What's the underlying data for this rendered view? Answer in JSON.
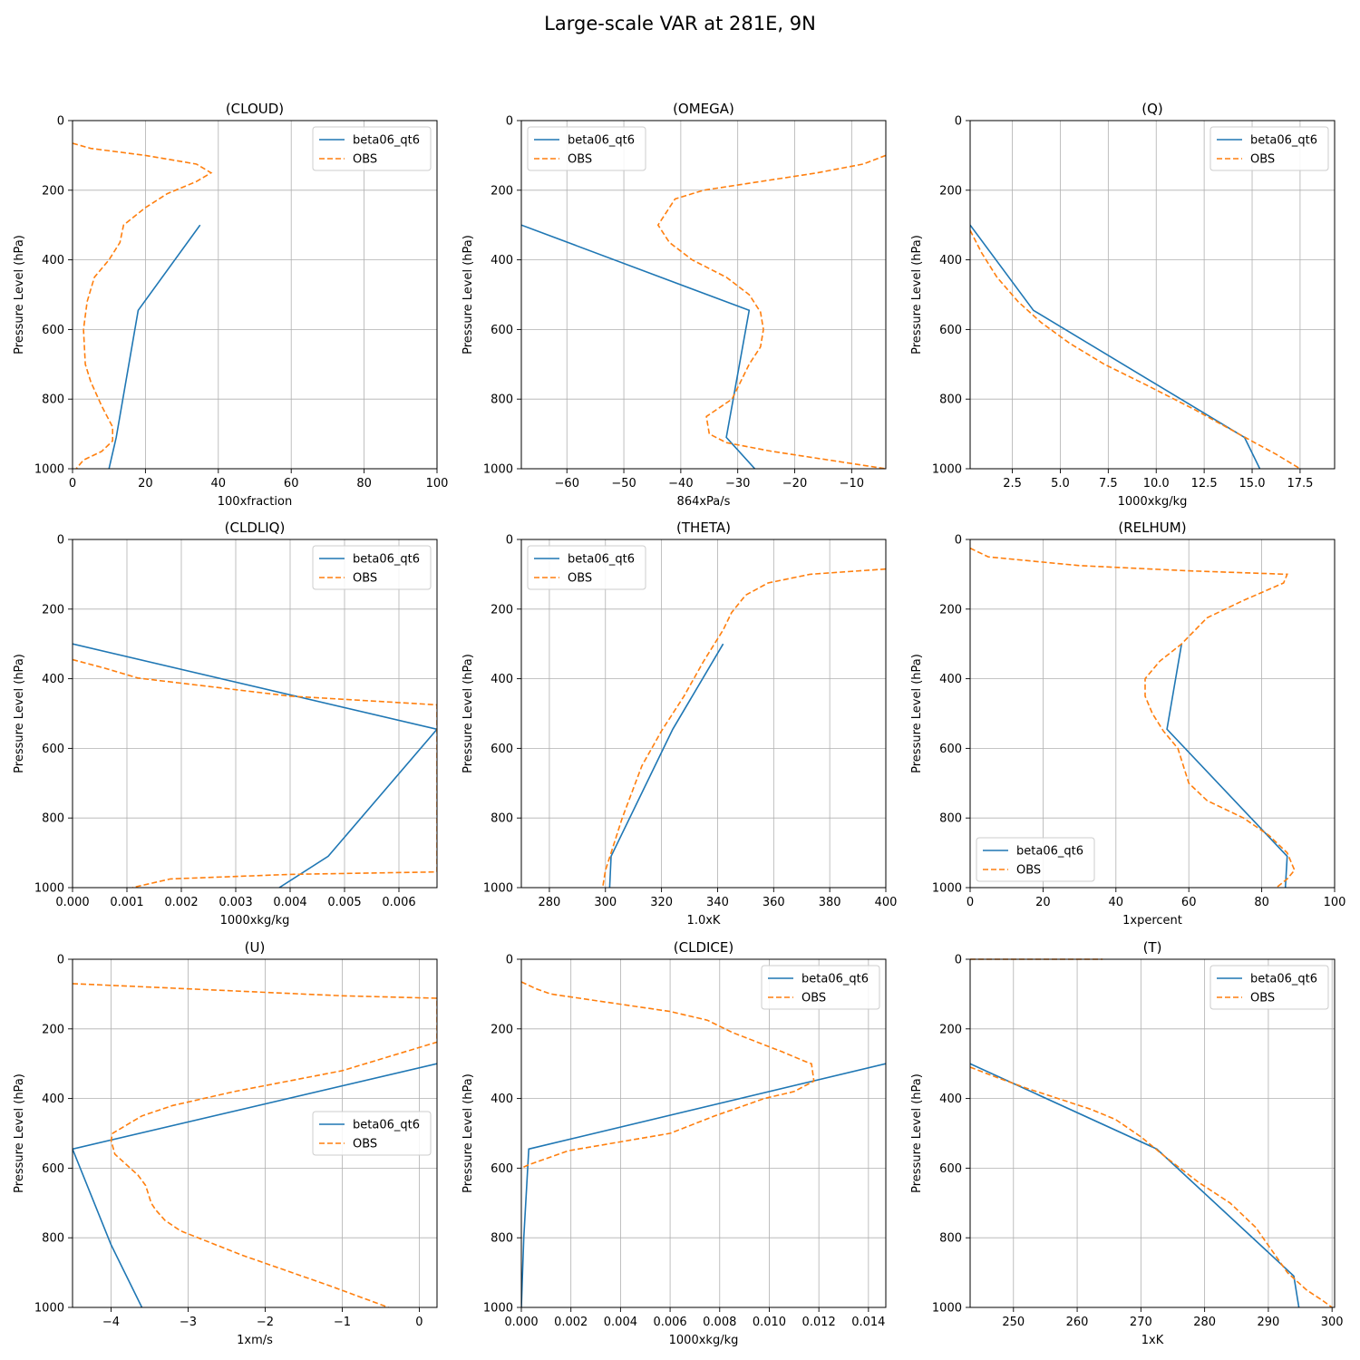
{
  "figure": {
    "title": "Large-scale VAR at 281E, 9N"
  },
  "colors": {
    "model": "#1f77b4",
    "obs": "#ff7f0e",
    "grid": "#b0b0b0"
  },
  "chart_data": [
    {
      "id": "cloud",
      "type": "line",
      "title": "(CLOUD)",
      "xlabel": "100xfraction",
      "ylabel": "Pressure Level (hPa)",
      "xlim": [
        0,
        100
      ],
      "ylim": [
        1000,
        0
      ],
      "xticks": [
        0,
        20,
        40,
        60,
        80,
        100
      ],
      "xtick_labels": [
        "0",
        "20",
        "40",
        "60",
        "80",
        "100"
      ],
      "yticks": [
        0,
        200,
        400,
        600,
        800,
        1000
      ],
      "ytick_labels": [
        "0",
        "200",
        "400",
        "600",
        "800",
        "1000"
      ],
      "legend": "upper right",
      "series": [
        {
          "name": "beta06_qt6",
          "style": "solid",
          "x": [
            35,
            18,
            12,
            10
          ],
          "y": [
            300,
            545,
            910,
            1000
          ]
        },
        {
          "name": "OBS",
          "style": "dashed",
          "x": [
            0,
            5,
            20,
            34,
            38,
            34,
            26,
            20,
            14,
            13,
            10,
            6,
            4,
            3,
            3.5,
            5,
            8,
            11,
            11,
            8,
            3,
            1
          ],
          "y": [
            65,
            80,
            100,
            125,
            150,
            175,
            210,
            250,
            300,
            350,
            400,
            450,
            520,
            600,
            700,
            750,
            820,
            880,
            920,
            950,
            975,
            1000
          ]
        }
      ]
    },
    {
      "id": "omega",
      "type": "line",
      "title": "(OMEGA)",
      "xlabel": "864xPa/s",
      "ylabel": "Pressure Level (hPa)",
      "xlim": [
        -68,
        -4
      ],
      "ylim": [
        1000,
        0
      ],
      "xticks": [
        -60,
        -50,
        -40,
        -30,
        -20,
        -10
      ],
      "xtick_labels": [
        "−60",
        "−50",
        "−40",
        "−30",
        "−20",
        "−10"
      ],
      "yticks": [
        0,
        200,
        400,
        600,
        800,
        1000
      ],
      "ytick_labels": [
        "0",
        "200",
        "400",
        "600",
        "800",
        "1000"
      ],
      "legend": "upper left",
      "series": [
        {
          "name": "beta06_qt6",
          "style": "solid",
          "x": [
            -68,
            -28,
            -32,
            -27
          ],
          "y": [
            300,
            545,
            910,
            1000
          ]
        },
        {
          "name": "OBS",
          "style": "dashed",
          "x": [
            -4,
            -8,
            -16,
            -26,
            -36,
            -41,
            -42,
            -44,
            -42,
            -38,
            -32,
            -28,
            -26,
            -25.5,
            -26,
            -28,
            -31,
            -35.5,
            -35,
            -32,
            -24,
            -14,
            -4
          ],
          "y": [
            100,
            125,
            150,
            175,
            200,
            225,
            250,
            300,
            350,
            400,
            450,
            500,
            550,
            600,
            650,
            700,
            800,
            850,
            900,
            925,
            950,
            975,
            1000
          ]
        }
      ]
    },
    {
      "id": "q",
      "type": "line",
      "title": "(Q)",
      "xlabel": "1000xkg/kg",
      "ylabel": "Pressure Level (hPa)",
      "xlim": [
        0.3,
        19.3
      ],
      "ylim": [
        1000,
        0
      ],
      "xticks": [
        2.5,
        5.0,
        7.5,
        10.0,
        12.5,
        15.0,
        17.5
      ],
      "xtick_labels": [
        "2.5",
        "5.0",
        "7.5",
        "10.0",
        "12.5",
        "15.0",
        "17.5"
      ],
      "yticks": [
        0,
        200,
        400,
        600,
        800,
        1000
      ],
      "ytick_labels": [
        "0",
        "200",
        "400",
        "600",
        "800",
        "1000"
      ],
      "legend": "upper right",
      "series": [
        {
          "name": "beta06_qt6",
          "style": "solid",
          "x": [
            0.3,
            3.6,
            14.6,
            15.4
          ],
          "y": [
            300,
            545,
            910,
            1000
          ]
        },
        {
          "name": "OBS",
          "style": "dashed",
          "x": [
            0.3,
            0.9,
            1.7,
            2.8,
            4.0,
            5.5,
            7.3,
            9.5,
            12,
            14.3,
            16.3,
            17.5
          ],
          "y": [
            315,
            380,
            450,
            520,
            580,
            640,
            700,
            760,
            830,
            900,
            960,
            1000
          ]
        }
      ]
    },
    {
      "id": "cldliq",
      "type": "line",
      "title": "(CLDLIQ)",
      "xlabel": "1000xkg/kg",
      "ylabel": "Pressure Level (hPa)",
      "xlim": [
        0,
        0.0067
      ],
      "ylim": [
        1000,
        0
      ],
      "xticks": [
        0,
        0.001,
        0.002,
        0.003,
        0.004,
        0.005,
        0.006
      ],
      "xtick_labels": [
        "0.000",
        "0.001",
        "0.002",
        "0.003",
        "0.004",
        "0.005",
        "0.006"
      ],
      "yticks": [
        0,
        200,
        400,
        600,
        800,
        1000
      ],
      "ytick_labels": [
        "0",
        "200",
        "400",
        "600",
        "800",
        "1000"
      ],
      "legend": "upper right",
      "series": [
        {
          "name": "beta06_qt6",
          "style": "solid",
          "x": [
            0,
            0.0067,
            0.0047,
            0.0038
          ],
          "y": [
            300,
            545,
            910,
            1000
          ]
        },
        {
          "name": "OBS",
          "style": "dashed",
          "x": [
            0,
            0.0006,
            0.0012,
            0.004,
            0.0067,
            0.0067,
            0.004,
            0.0018,
            0.0011
          ],
          "y": [
            345,
            370,
            398,
            450,
            475,
            955,
            962,
            975,
            1000
          ]
        }
      ]
    },
    {
      "id": "theta",
      "type": "line",
      "title": "(THETA)",
      "xlabel": "1.0xK",
      "ylabel": "Pressure Level (hPa)",
      "xlim": [
        270,
        400
      ],
      "ylim": [
        1000,
        0
      ],
      "xticks": [
        280,
        300,
        320,
        340,
        360,
        380,
        400
      ],
      "xtick_labels": [
        "280",
        "300",
        "320",
        "340",
        "360",
        "380",
        "400"
      ],
      "yticks": [
        0,
        200,
        400,
        600,
        800,
        1000
      ],
      "ytick_labels": [
        "0",
        "200",
        "400",
        "600",
        "800",
        "1000"
      ],
      "legend": "upper left",
      "series": [
        {
          "name": "beta06_qt6",
          "style": "solid",
          "x": [
            342,
            324,
            302,
            301.5
          ],
          "y": [
            300,
            545,
            910,
            1000
          ]
        },
        {
          "name": "OBS",
          "style": "dashed",
          "x": [
            400,
            373,
            358,
            350,
            345,
            342,
            335,
            328,
            320,
            313,
            306,
            302,
            300,
            299
          ],
          "y": [
            85,
            100,
            125,
            160,
            210,
            260,
            350,
            450,
            550,
            650,
            800,
            900,
            950,
            1000
          ]
        }
      ]
    },
    {
      "id": "relhum",
      "type": "line",
      "title": "(RELHUM)",
      "xlabel": "1xpercent",
      "ylabel": "Pressure Level (hPa)",
      "xlim": [
        0,
        100
      ],
      "ylim": [
        1000,
        0
      ],
      "xticks": [
        0,
        20,
        40,
        60,
        80,
        100
      ],
      "xtick_labels": [
        "0",
        "20",
        "40",
        "60",
        "80",
        "100"
      ],
      "yticks": [
        0,
        200,
        400,
        600,
        800,
        1000
      ],
      "ytick_labels": [
        "0",
        "200",
        "400",
        "600",
        "800",
        "1000"
      ],
      "legend": "lower left",
      "series": [
        {
          "name": "beta06_qt6",
          "style": "solid",
          "x": [
            58,
            54,
            87,
            86.5
          ],
          "y": [
            300,
            545,
            910,
            1000
          ]
        },
        {
          "name": "OBS",
          "style": "dashed",
          "x": [
            0,
            5,
            20,
            30,
            60,
            87,
            86,
            75,
            65,
            58,
            52,
            48,
            48,
            50,
            53,
            57,
            60,
            65,
            75,
            82,
            87,
            89,
            87,
            84
          ],
          "y": [
            25,
            50,
            65,
            75,
            90,
            100,
            125,
            175,
            225,
            300,
            350,
            400,
            450,
            500,
            550,
            600,
            700,
            750,
            800,
            850,
            900,
            950,
            975,
            1000
          ]
        }
      ]
    },
    {
      "id": "u",
      "type": "line",
      "title": "(U)",
      "xlabel": "1xm/s",
      "ylabel": "Pressure Level (hPa)",
      "xlim": [
        -4.5,
        0.23
      ],
      "ylim": [
        1000,
        0
      ],
      "xticks": [
        -4,
        -3,
        -2,
        -1,
        0
      ],
      "xtick_labels": [
        "−4",
        "−3",
        "−2",
        "−1",
        "0"
      ],
      "yticks": [
        0,
        200,
        400,
        600,
        800,
        1000
      ],
      "ytick_labels": [
        "0",
        "200",
        "400",
        "600",
        "800",
        "1000"
      ],
      "legend": "center right",
      "series": [
        {
          "name": "beta06_qt6",
          "style": "solid",
          "x": [
            0.23,
            -4.5,
            -4.0,
            -3.6
          ],
          "y": [
            300,
            545,
            820,
            1000
          ]
        },
        {
          "name": "OBS",
          "style": "dashed",
          "x": [
            -4.5,
            -3.5,
            -2.0,
            -1.0,
            0.23,
            0.23,
            -1.0,
            -2.4,
            -3.2,
            -3.6,
            -3.98,
            -4.0,
            -3.95,
            -3.65,
            -3.55,
            -3.48,
            -3.42,
            -3.3,
            -3.1,
            -2.3,
            -1.2,
            -0.4
          ],
          "y": [
            70,
            80,
            95,
            105,
            112,
            238,
            320,
            380,
            420,
            450,
            500,
            520,
            560,
            620,
            650,
            700,
            720,
            750,
            780,
            850,
            935,
            1000
          ]
        }
      ]
    },
    {
      "id": "cldice",
      "type": "line",
      "title": "(CLDICE)",
      "xlabel": "1000xkg/kg",
      "ylabel": "Pressure Level (hPa)",
      "xlim": [
        0,
        0.0147
      ],
      "ylim": [
        1000,
        0
      ],
      "xticks": [
        0,
        0.002,
        0.004,
        0.006,
        0.008,
        0.01,
        0.012,
        0.014
      ],
      "xtick_labels": [
        "0.000",
        "0.002",
        "0.004",
        "0.006",
        "0.008",
        "0.010",
        "0.012",
        "0.014"
      ],
      "yticks": [
        0,
        200,
        400,
        600,
        800,
        1000
      ],
      "ytick_labels": [
        "0",
        "200",
        "400",
        "600",
        "800",
        "1000"
      ],
      "legend": "upper right",
      "series": [
        {
          "name": "beta06_qt6",
          "style": "solid",
          "x": [
            0.0147,
            0.0003,
            0.0001,
            0
          ],
          "y": [
            300,
            545,
            800,
            1000
          ]
        },
        {
          "name": "OBS",
          "style": "dashed",
          "x": [
            0,
            0.0006,
            0.0012,
            0.006,
            0.0075,
            0.0085,
            0.0105,
            0.0115,
            0.0117,
            0.0118,
            0.011,
            0.0098,
            0.0078,
            0.006,
            0.0019,
            0.0003,
            0
          ],
          "y": [
            65,
            85,
            100,
            150,
            175,
            210,
            265,
            295,
            300,
            350,
            380,
            400,
            450,
            500,
            550,
            590,
            600
          ]
        }
      ]
    },
    {
      "id": "t",
      "type": "line",
      "title": "(T)",
      "xlabel": "1xK",
      "ylabel": "Pressure Level (hPa)",
      "xlim": [
        243.2,
        300.4
      ],
      "ylim": [
        1000,
        0
      ],
      "xticks": [
        250,
        260,
        270,
        280,
        290,
        300
      ],
      "xtick_labels": [
        "250",
        "260",
        "270",
        "280",
        "290",
        "300"
      ],
      "yticks": [
        0,
        200,
        400,
        600,
        800,
        1000
      ],
      "ytick_labels": [
        "0",
        "200",
        "400",
        "600",
        "800",
        "1000"
      ],
      "legend": "upper right",
      "series": [
        {
          "name": "beta06_qt6",
          "style": "solid",
          "x": [
            243.2,
            272.5,
            294,
            294.8
          ],
          "y": [
            300,
            545,
            910,
            1000
          ]
        },
        {
          "name": "OBS",
          "style": "dashed",
          "x": [
            243.2,
            247.5,
            252,
            257,
            262,
            266,
            270,
            274,
            279,
            284,
            288,
            293,
            296,
            298.5,
            300
          ],
          "y": [
            310,
            340,
            370,
            400,
            430,
            460,
            510,
            570,
            640,
            700,
            770,
            900,
            950,
            980,
            1000
          ]
        }
      ],
      "top_trace": {
        "name": "OBS",
        "style": "dashed",
        "x": [
          243.2,
          264
        ],
        "y": [
          0,
          0
        ]
      }
    }
  ]
}
